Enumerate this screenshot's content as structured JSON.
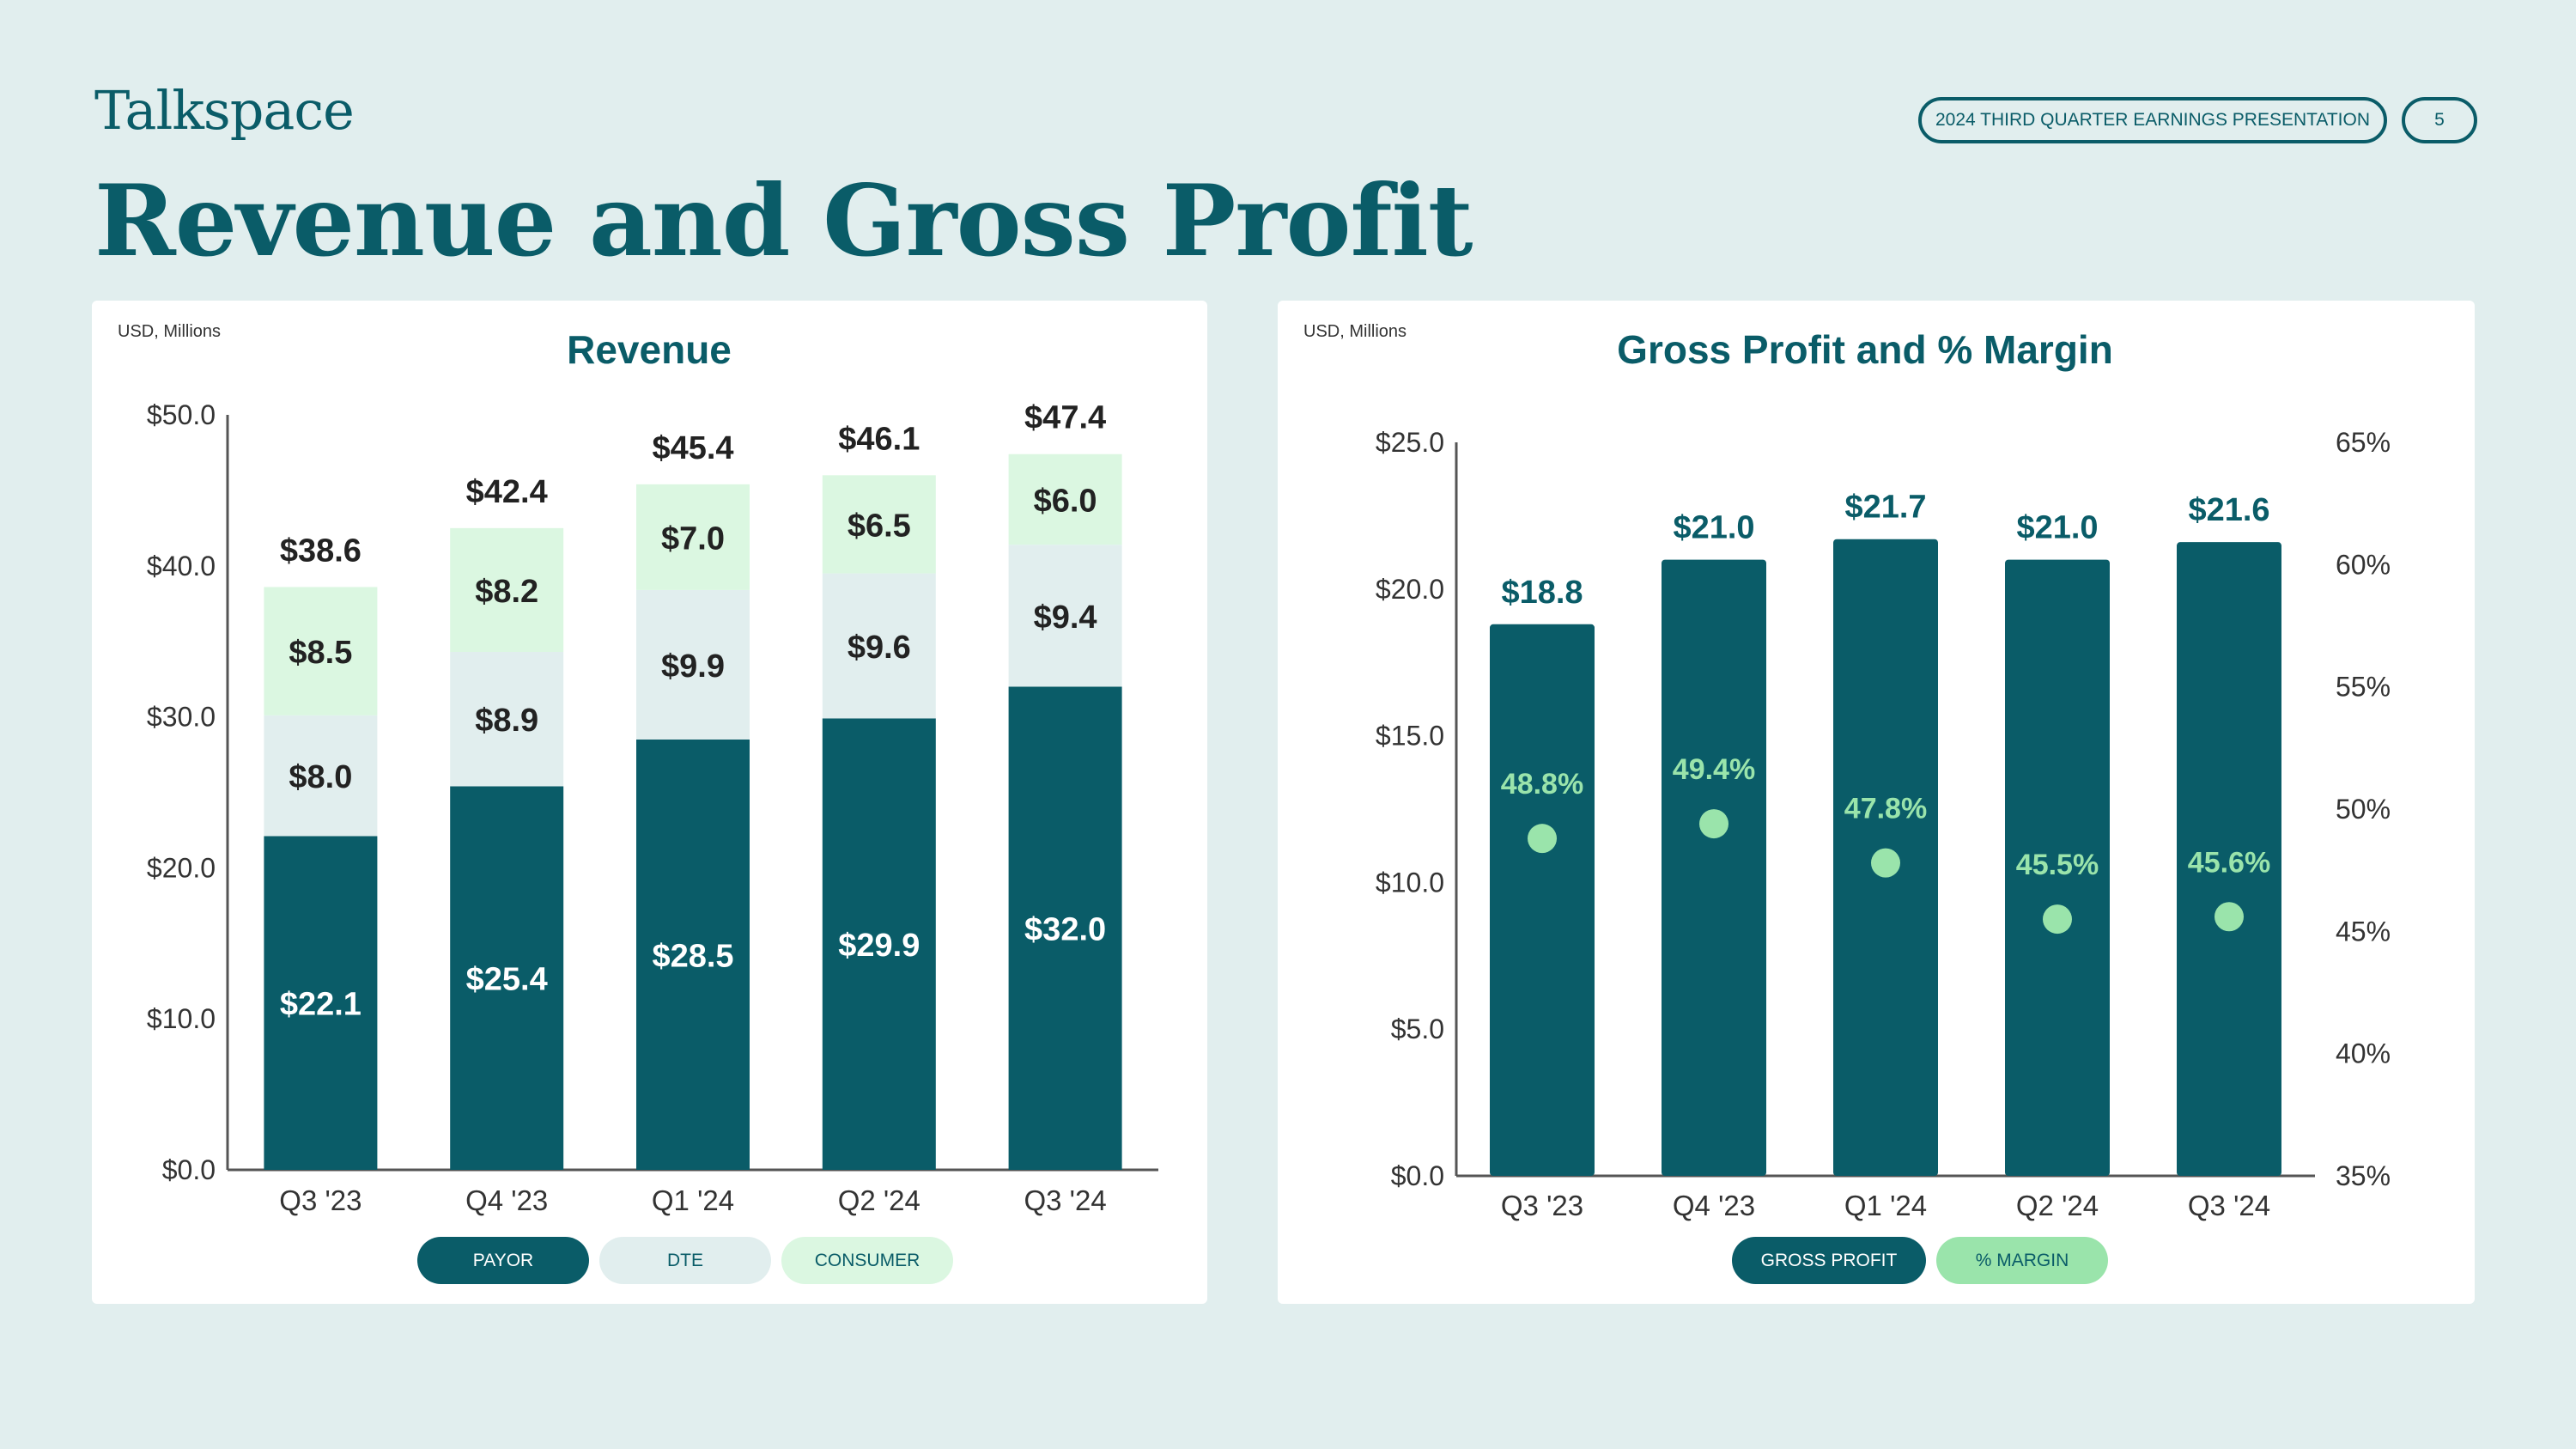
{
  "header": {
    "logo_text": "Talkspace",
    "page_title": "Revenue and Gross Profit",
    "presentation_label": "2024 THIRD QUARTER EARNINGS PRESENTATION",
    "page_number": "5"
  },
  "colors": {
    "background": "#e1eeee",
    "brand_teal": "#0a5c68",
    "payor": "#0a5c68",
    "dte": "#e1eeee",
    "consumer": "#dbf7e1",
    "margin_marker": "#9ae4ab"
  },
  "chart_data": [
    {
      "type": "bar",
      "stacked": true,
      "units_label": "USD, Millions",
      "title": "Revenue",
      "categories": [
        "Q3 '23",
        "Q4 '23",
        "Q1 '24",
        "Q2 '24",
        "Q3 '24"
      ],
      "series": [
        {
          "name": "PAYOR",
          "values": [
            22.1,
            25.4,
            28.5,
            29.9,
            32.0
          ],
          "labels": [
            "$22.1",
            "$25.4",
            "$28.5",
            "$29.9",
            "$32.0"
          ]
        },
        {
          "name": "DTE",
          "values": [
            8.0,
            8.9,
            9.9,
            9.6,
            9.4
          ],
          "labels": [
            "$8.0",
            "$8.9",
            "$9.9",
            "$9.6",
            "$9.4"
          ]
        },
        {
          "name": "CONSUMER",
          "values": [
            8.5,
            8.2,
            7.0,
            6.5,
            6.0
          ],
          "labels": [
            "$8.5",
            "$8.2",
            "$7.0",
            "$6.5",
            "$6.0"
          ]
        }
      ],
      "totals": [
        "$38.6",
        "$42.4",
        "$45.4",
        "$46.1",
        "$47.4"
      ],
      "ylim": [
        0,
        50
      ],
      "yticks": [
        0,
        10,
        20,
        30,
        40,
        50
      ],
      "ytick_labels": [
        "$0.0",
        "$10.0",
        "$20.0",
        "$30.0",
        "$40.0",
        "$50.0"
      ],
      "grid": false,
      "legend_placement": "bottom-center"
    },
    {
      "type": "bar",
      "units_label": "USD, Millions",
      "title": "Gross Profit and % Margin",
      "categories": [
        "Q3 '23",
        "Q4 '23",
        "Q1 '24",
        "Q2 '24",
        "Q3 '24"
      ],
      "series": [
        {
          "name": "GROSS PROFIT",
          "axis": "left",
          "values": [
            18.8,
            21.0,
            21.7,
            21.0,
            21.6
          ],
          "labels": [
            "$18.8",
            "$21.0",
            "$21.7",
            "$21.0",
            "$21.6"
          ]
        },
        {
          "name": "% MARGIN",
          "axis": "right",
          "values": [
            48.8,
            49.4,
            47.8,
            45.5,
            45.6
          ],
          "labels": [
            "48.8%",
            "49.4%",
            "47.8%",
            "45.5%",
            "45.6%"
          ]
        }
      ],
      "ylim": [
        0,
        25
      ],
      "yticks": [
        0,
        5,
        10,
        15,
        20,
        25
      ],
      "ytick_labels": [
        "$0.0",
        "$5.0",
        "$10.0",
        "$15.0",
        "$20.0",
        "$25.0"
      ],
      "y2lim": [
        35,
        65
      ],
      "y2ticks": [
        35,
        40,
        45,
        50,
        55,
        60,
        65
      ],
      "y2tick_labels": [
        "35%",
        "40%",
        "45%",
        "50%",
        "55%",
        "60%",
        "65%"
      ],
      "grid": false,
      "legend_placement": "bottom-center"
    }
  ]
}
